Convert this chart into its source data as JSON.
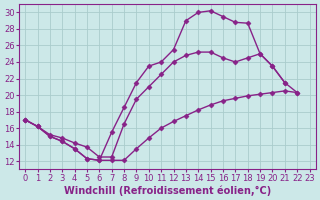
{
  "background_color": "#cce8e8",
  "grid_color": "#aacccc",
  "line_color": "#882288",
  "marker": "D",
  "markersize": 2.5,
  "linewidth": 1.0,
  "xlabel": "Windchill (Refroidissement éolien,°C)",
  "xlabel_fontsize": 7.0,
  "tick_fontsize": 6.0,
  "xlim": [
    -0.5,
    23.5
  ],
  "ylim": [
    11,
    31
  ],
  "yticks": [
    12,
    14,
    16,
    18,
    20,
    22,
    24,
    26,
    28,
    30
  ],
  "xticks": [
    0,
    1,
    2,
    3,
    4,
    5,
    6,
    7,
    8,
    9,
    10,
    11,
    12,
    13,
    14,
    15,
    16,
    17,
    18,
    19,
    20,
    21,
    22,
    23
  ],
  "series": [
    [
      17.0,
      16.2,
      15.0,
      14.4,
      13.5,
      12.3,
      12.1,
      12.1,
      12.1,
      13.5,
      14.8,
      16.0,
      16.8,
      17.5,
      18.2,
      18.8,
      19.3,
      19.6,
      19.9,
      20.1,
      20.3,
      20.5,
      20.3
    ],
    [
      17.0,
      16.2,
      15.0,
      14.4,
      13.5,
      12.3,
      12.1,
      15.5,
      18.5,
      21.5,
      23.5,
      24.0,
      25.5,
      29.0,
      30.0,
      30.2,
      29.5,
      28.8,
      28.7,
      25.0,
      23.5,
      21.5
    ],
    [
      17.0,
      16.2,
      15.2,
      14.8,
      14.2,
      13.7,
      12.5,
      12.5,
      16.5,
      19.5,
      21.0,
      22.5,
      24.0,
      24.8,
      25.2,
      25.2,
      24.5,
      24.0,
      24.5,
      25.0,
      23.5,
      21.5,
      20.3
    ]
  ],
  "series_x": [
    [
      0,
      1,
      2,
      3,
      4,
      5,
      6,
      7,
      8,
      9,
      10,
      11,
      12,
      13,
      14,
      15,
      16,
      17,
      18,
      19,
      20,
      21,
      22
    ],
    [
      0,
      1,
      2,
      3,
      4,
      5,
      6,
      7,
      8,
      9,
      10,
      11,
      12,
      13,
      14,
      15,
      16,
      17,
      18,
      19,
      20,
      21
    ],
    [
      0,
      1,
      2,
      3,
      4,
      5,
      6,
      7,
      8,
      9,
      10,
      11,
      12,
      13,
      14,
      15,
      16,
      17,
      18,
      19,
      20,
      21,
      22
    ]
  ]
}
